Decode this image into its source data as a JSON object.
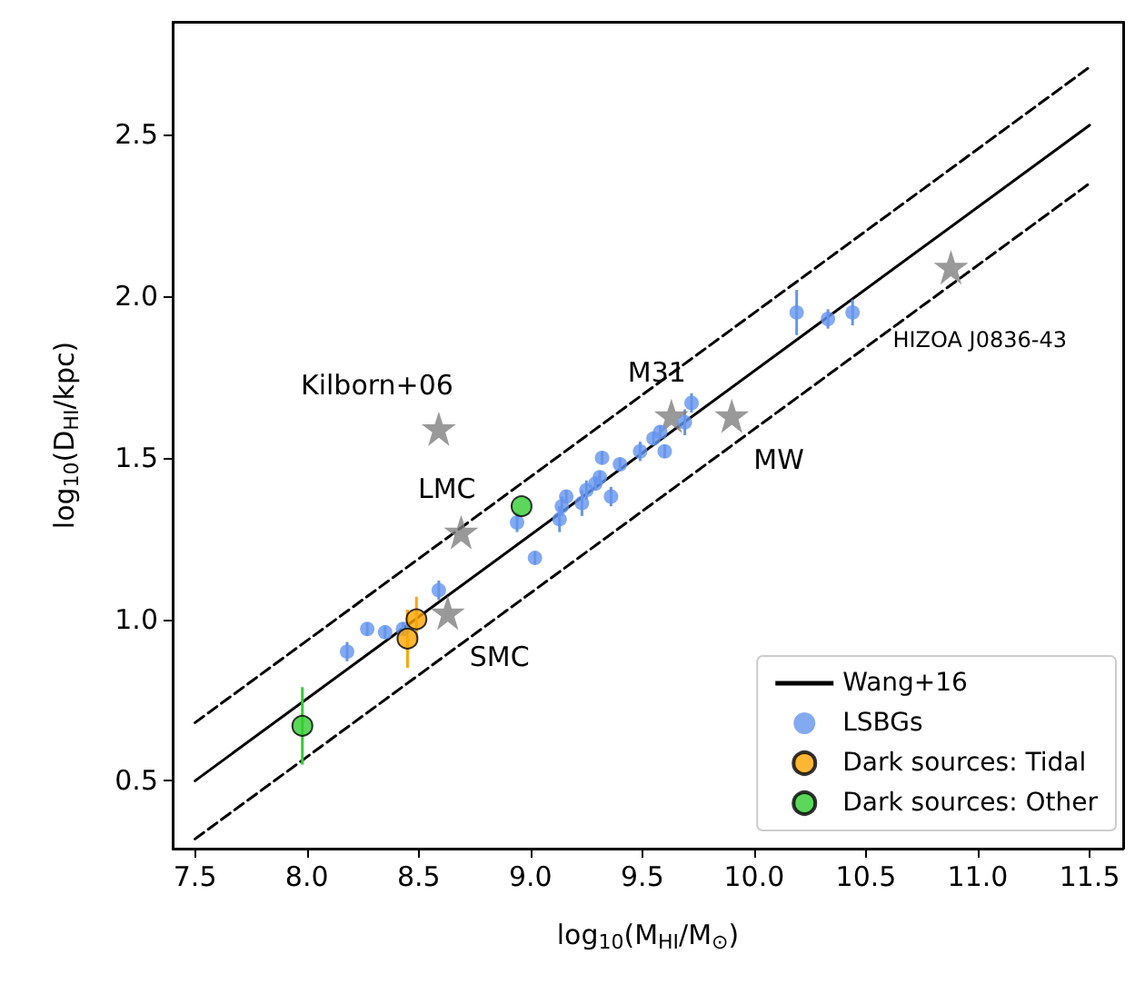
{
  "chart_data": {
    "type": "scatter",
    "xlabel": "log$_{10}$(M$_{HI}$/M$_{⊙}$)",
    "ylabel": "log$_{10}$(D$_{HI}$/kpc)",
    "xlim": [
      7.4,
      11.65
    ],
    "ylim": [
      0.29,
      2.85
    ],
    "xticks": [
      7.5,
      {
        "value": 8,
        "label": "8.0"
      },
      8.5,
      {
        "value": 9,
        "label": "9.0"
      },
      9.5,
      {
        "value": 10,
        "label": "10.0"
      },
      10.5,
      {
        "value": 11,
        "label": "11.0"
      },
      11.5
    ],
    "yticks": [
      0.5,
      {
        "value": 1,
        "label": "1.0"
      },
      1.5,
      {
        "value": 2,
        "label": "2.0"
      },
      2.5
    ],
    "grid": false,
    "legend": "bottom right",
    "series": [
      {
        "name": "Wang+16",
        "type": "line",
        "color": "#000000",
        "line_style": "solid",
        "marker": "none",
        "x": [
          7.5,
          11.5
        ],
        "values": [
          0.5,
          2.53
        ]
      },
      {
        "type": "line",
        "color": "#000000",
        "line_style": "dashed",
        "marker": "none",
        "x": [
          7.5,
          11.5
        ],
        "values": [
          0.68,
          2.71
        ]
      },
      {
        "type": "line",
        "color": "#000000",
        "line_style": "dashed",
        "marker": "none",
        "x": [
          7.5,
          11.5
        ],
        "values": [
          0.32,
          2.35
        ]
      },
      {
        "color": "#808080",
        "marker": "star",
        "x": [
          8.59,
          8.69,
          8.63,
          9.63,
          9.9,
          10.88
        ],
        "values": [
          1.59,
          1.27,
          1.02,
          1.63,
          1.63,
          2.09
        ]
      },
      {
        "name": "LSBGs",
        "color": "#6495ed",
        "marker": "circle",
        "x": [
          8.18,
          8.27,
          8.35,
          8.43,
          8.59,
          8.94,
          9.02,
          9.13,
          9.14,
          9.16,
          9.23,
          9.25,
          9.29,
          9.31,
          9.32,
          9.36,
          9.4,
          9.49,
          9.55,
          9.58,
          9.6,
          9.69,
          9.72,
          10.19,
          10.33,
          10.44
        ],
        "values": [
          0.9,
          0.97,
          0.96,
          0.97,
          1.09,
          1.3,
          1.19,
          1.31,
          1.35,
          1.38,
          1.36,
          1.4,
          1.42,
          1.44,
          1.5,
          1.38,
          1.48,
          1.52,
          1.56,
          1.58,
          1.52,
          1.61,
          1.67,
          1.95,
          1.93,
          1.95
        ],
        "errors": [
          0.03,
          0.02,
          0.02,
          0.02,
          0.03,
          0.03,
          0.02,
          0.04,
          0.03,
          0.02,
          0.04,
          0.03,
          0.02,
          0.02,
          0.02,
          0.03,
          0.02,
          0.03,
          0.02,
          0.02,
          0.02,
          0.04,
          0.03,
          0.07,
          0.03,
          0.04
        ]
      },
      {
        "name": "Dark sources: Tidal",
        "color": "#ffa500",
        "marker": "circle",
        "x": [
          8.49,
          8.45
        ],
        "values": [
          1.0,
          0.94
        ],
        "errors": [
          0.07,
          0.09
        ]
      },
      {
        "name": "Dark sources: Other",
        "color": "#32cd32",
        "marker": "circle",
        "x": [
          8.96,
          7.98
        ],
        "values": [
          1.35,
          0.67
        ],
        "errors": [
          null,
          0.12
        ]
      }
    ],
    "annotations": [
      {
        "text": "Kilborn+06",
        "x": 8.59,
        "y": 1.59
      },
      {
        "text": "LMC",
        "x": 8.69,
        "y": 1.27
      },
      {
        "text": "SMC",
        "x": 8.63,
        "y": 1.02
      },
      {
        "text": "M31",
        "x": 9.63,
        "y": 1.63
      },
      {
        "text": "MW",
        "x": 9.9,
        "y": 1.63
      },
      {
        "text": "HIZOA J0836-43",
        "x": 10.88,
        "y": 2.09
      }
    ]
  }
}
